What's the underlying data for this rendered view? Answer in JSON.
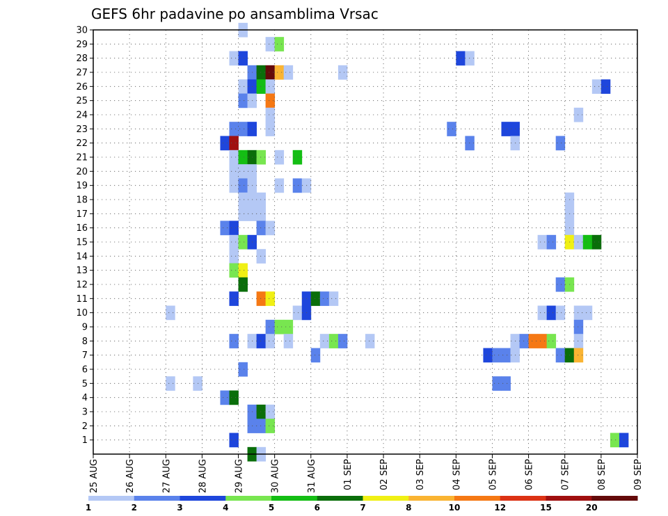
{
  "chart_data": {
    "type": "heatmap",
    "title": "GEFS 6hr padavine po ansamblima Vrsac",
    "x_ticks": [
      "25 AUG",
      "26 AUG",
      "27 AUG",
      "28 AUG",
      "29 AUG",
      "30 AUG",
      "31 AUG",
      "01 SEP",
      "02 SEP",
      "03 SEP",
      "04 SEP",
      "05 SEP",
      "06 SEP",
      "07 SEP",
      "08 SEP",
      "09 SEP"
    ],
    "y_ticks": [
      "1",
      "2",
      "3",
      "4",
      "5",
      "6",
      "7",
      "8",
      "9",
      "10",
      "11",
      "12",
      "13",
      "14",
      "15",
      "16",
      "17",
      "18",
      "19",
      "20",
      "21",
      "22",
      "23",
      "24",
      "25",
      "26",
      "27",
      "28",
      "29",
      "30"
    ],
    "ylim": [
      0,
      30
    ],
    "grid": true,
    "x_step_hours": 6,
    "legend": {
      "placement": "bottom",
      "labels": [
        "1",
        "2",
        "3",
        "4",
        "5",
        "6",
        "7",
        "8",
        "10",
        "12",
        "15",
        "20"
      ],
      "colors": [
        "#b4c8f5",
        "#5a82eb",
        "#1e46dc",
        "#78e650",
        "#14be14",
        "#0a6e0a",
        "#f0f014",
        "#fab432",
        "#f57814",
        "#dc3214",
        "#a00f0f",
        "#640a0a"
      ]
    },
    "cells": [
      {
        "m": 30,
        "t": 16,
        "c": 1
      },
      {
        "m": 29,
        "t": 19,
        "c": 1
      },
      {
        "m": 29,
        "t": 20,
        "c": 4
      },
      {
        "m": 28,
        "t": 15,
        "c": 1
      },
      {
        "m": 28,
        "t": 16,
        "c": 3
      },
      {
        "m": 28,
        "t": 40,
        "c": 3
      },
      {
        "m": 28,
        "t": 41,
        "c": 1
      },
      {
        "m": 27,
        "t": 17,
        "c": 2
      },
      {
        "m": 27,
        "t": 18,
        "c": 6
      },
      {
        "m": 27,
        "t": 19,
        "c": 12
      },
      {
        "m": 27,
        "t": 20,
        "c": 8
      },
      {
        "m": 27,
        "t": 21,
        "c": 1
      },
      {
        "m": 27,
        "t": 27,
        "c": 1
      },
      {
        "m": 26,
        "t": 16,
        "c": 1
      },
      {
        "m": 26,
        "t": 17,
        "c": 3
      },
      {
        "m": 26,
        "t": 18,
        "c": 5
      },
      {
        "m": 26,
        "t": 19,
        "c": 1
      },
      {
        "m": 26,
        "t": 55,
        "c": 1
      },
      {
        "m": 26,
        "t": 56,
        "c": 3
      },
      {
        "m": 25,
        "t": 16,
        "c": 2
      },
      {
        "m": 25,
        "t": 17,
        "c": 1
      },
      {
        "m": 25,
        "t": 19,
        "c": 9
      },
      {
        "m": 24,
        "t": 19,
        "c": 1
      },
      {
        "m": 24,
        "t": 53,
        "c": 1
      },
      {
        "m": 23,
        "t": 15,
        "c": 2
      },
      {
        "m": 23,
        "t": 16,
        "c": 2
      },
      {
        "m": 23,
        "t": 17,
        "c": 3
      },
      {
        "m": 23,
        "t": 19,
        "c": 1
      },
      {
        "m": 23,
        "t": 39,
        "c": 2
      },
      {
        "m": 23,
        "t": 45,
        "c": 3
      },
      {
        "m": 23,
        "t": 46,
        "c": 3
      },
      {
        "m": 22,
        "t": 14,
        "c": 3
      },
      {
        "m": 22,
        "t": 15,
        "c": 11
      },
      {
        "m": 22,
        "t": 41,
        "c": 2
      },
      {
        "m": 22,
        "t": 46,
        "c": 1
      },
      {
        "m": 22,
        "t": 51,
        "c": 2
      },
      {
        "m": 21,
        "t": 15,
        "c": 1
      },
      {
        "m": 21,
        "t": 16,
        "c": 5
      },
      {
        "m": 21,
        "t": 17,
        "c": 6
      },
      {
        "m": 21,
        "t": 18,
        "c": 4
      },
      {
        "m": 21,
        "t": 20,
        "c": 1
      },
      {
        "m": 21,
        "t": 22,
        "c": 5
      },
      {
        "m": 20,
        "t": 15,
        "c": 1
      },
      {
        "m": 20,
        "t": 16,
        "c": 1
      },
      {
        "m": 20,
        "t": 17,
        "c": 1
      },
      {
        "m": 19,
        "t": 15,
        "c": 1
      },
      {
        "m": 19,
        "t": 16,
        "c": 2
      },
      {
        "m": 19,
        "t": 17,
        "c": 1
      },
      {
        "m": 19,
        "t": 20,
        "c": 1
      },
      {
        "m": 19,
        "t": 22,
        "c": 2
      },
      {
        "m": 19,
        "t": 23,
        "c": 1
      },
      {
        "m": 18,
        "t": 16,
        "c": 1
      },
      {
        "m": 18,
        "t": 17,
        "c": 1
      },
      {
        "m": 18,
        "t": 18,
        "c": 1
      },
      {
        "m": 18,
        "t": 52,
        "c": 1
      },
      {
        "m": 17,
        "t": 16,
        "c": 1
      },
      {
        "m": 17,
        "t": 17,
        "c": 1
      },
      {
        "m": 17,
        "t": 18,
        "c": 1
      },
      {
        "m": 17,
        "t": 52,
        "c": 1
      },
      {
        "m": 16,
        "t": 14,
        "c": 2
      },
      {
        "m": 16,
        "t": 15,
        "c": 3
      },
      {
        "m": 16,
        "t": 18,
        "c": 2
      },
      {
        "m": 16,
        "t": 19,
        "c": 1
      },
      {
        "m": 16,
        "t": 52,
        "c": 1
      },
      {
        "m": 15,
        "t": 15,
        "c": 1
      },
      {
        "m": 15,
        "t": 16,
        "c": 4
      },
      {
        "m": 15,
        "t": 17,
        "c": 3
      },
      {
        "m": 15,
        "t": 49,
        "c": 1
      },
      {
        "m": 15,
        "t": 50,
        "c": 2
      },
      {
        "m": 15,
        "t": 52,
        "c": 7
      },
      {
        "m": 15,
        "t": 53,
        "c": 1
      },
      {
        "m": 15,
        "t": 54,
        "c": 5
      },
      {
        "m": 15,
        "t": 55,
        "c": 6
      },
      {
        "m": 14,
        "t": 15,
        "c": 1
      },
      {
        "m": 14,
        "t": 18,
        "c": 1
      },
      {
        "m": 13,
        "t": 15,
        "c": 4
      },
      {
        "m": 13,
        "t": 16,
        "c": 7
      },
      {
        "m": 12,
        "t": 16,
        "c": 6
      },
      {
        "m": 12,
        "t": 51,
        "c": 2
      },
      {
        "m": 12,
        "t": 52,
        "c": 4
      },
      {
        "m": 11,
        "t": 15,
        "c": 3
      },
      {
        "m": 11,
        "t": 18,
        "c": 9
      },
      {
        "m": 11,
        "t": 19,
        "c": 7
      },
      {
        "m": 11,
        "t": 23,
        "c": 3
      },
      {
        "m": 11,
        "t": 24,
        "c": 6
      },
      {
        "m": 11,
        "t": 25,
        "c": 2
      },
      {
        "m": 11,
        "t": 26,
        "c": 1
      },
      {
        "m": 10,
        "t": 8,
        "c": 1
      },
      {
        "m": 10,
        "t": 22,
        "c": 1
      },
      {
        "m": 10,
        "t": 23,
        "c": 3
      },
      {
        "m": 10,
        "t": 49,
        "c": 1
      },
      {
        "m": 10,
        "t": 50,
        "c": 3
      },
      {
        "m": 10,
        "t": 51,
        "c": 1
      },
      {
        "m": 10,
        "t": 53,
        "c": 1
      },
      {
        "m": 10,
        "t": 54,
        "c": 1
      },
      {
        "m": 9,
        "t": 19,
        "c": 2
      },
      {
        "m": 9,
        "t": 20,
        "c": 4
      },
      {
        "m": 9,
        "t": 21,
        "c": 4
      },
      {
        "m": 9,
        "t": 53,
        "c": 2
      },
      {
        "m": 8,
        "t": 15,
        "c": 2
      },
      {
        "m": 8,
        "t": 17,
        "c": 1
      },
      {
        "m": 8,
        "t": 18,
        "c": 3
      },
      {
        "m": 8,
        "t": 19,
        "c": 1
      },
      {
        "m": 8,
        "t": 21,
        "c": 1
      },
      {
        "m": 8,
        "t": 25,
        "c": 1
      },
      {
        "m": 8,
        "t": 26,
        "c": 4
      },
      {
        "m": 8,
        "t": 27,
        "c": 2
      },
      {
        "m": 8,
        "t": 30,
        "c": 1
      },
      {
        "m": 8,
        "t": 46,
        "c": 1
      },
      {
        "m": 8,
        "t": 47,
        "c": 2
      },
      {
        "m": 8,
        "t": 48,
        "c": 9
      },
      {
        "m": 8,
        "t": 49,
        "c": 9
      },
      {
        "m": 8,
        "t": 50,
        "c": 4
      },
      {
        "m": 8,
        "t": 53,
        "c": 1
      },
      {
        "m": 7,
        "t": 24,
        "c": 2
      },
      {
        "m": 7,
        "t": 43,
        "c": 3
      },
      {
        "m": 7,
        "t": 44,
        "c": 2
      },
      {
        "m": 7,
        "t": 45,
        "c": 2
      },
      {
        "m": 7,
        "t": 46,
        "c": 1
      },
      {
        "m": 7,
        "t": 51,
        "c": 2
      },
      {
        "m": 7,
        "t": 52,
        "c": 6
      },
      {
        "m": 7,
        "t": 53,
        "c": 8
      },
      {
        "m": 6,
        "t": 16,
        "c": 2
      },
      {
        "m": 5,
        "t": 8,
        "c": 1
      },
      {
        "m": 5,
        "t": 11,
        "c": 1
      },
      {
        "m": 5,
        "t": 44,
        "c": 2
      },
      {
        "m": 5,
        "t": 45,
        "c": 2
      },
      {
        "m": 4,
        "t": 14,
        "c": 2
      },
      {
        "m": 4,
        "t": 15,
        "c": 6
      },
      {
        "m": 3,
        "t": 17,
        "c": 2
      },
      {
        "m": 3,
        "t": 18,
        "c": 6
      },
      {
        "m": 3,
        "t": 19,
        "c": 1
      },
      {
        "m": 2,
        "t": 17,
        "c": 2
      },
      {
        "m": 2,
        "t": 18,
        "c": 2
      },
      {
        "m": 2,
        "t": 19,
        "c": 4
      },
      {
        "m": 1,
        "t": 15,
        "c": 3
      },
      {
        "m": 1,
        "t": 57,
        "c": 4
      },
      {
        "m": 1,
        "t": 58,
        "c": 3
      },
      {
        "m": 0,
        "t": 17,
        "c": 6
      },
      {
        "m": 0,
        "t": 18,
        "c": 1
      }
    ]
  }
}
